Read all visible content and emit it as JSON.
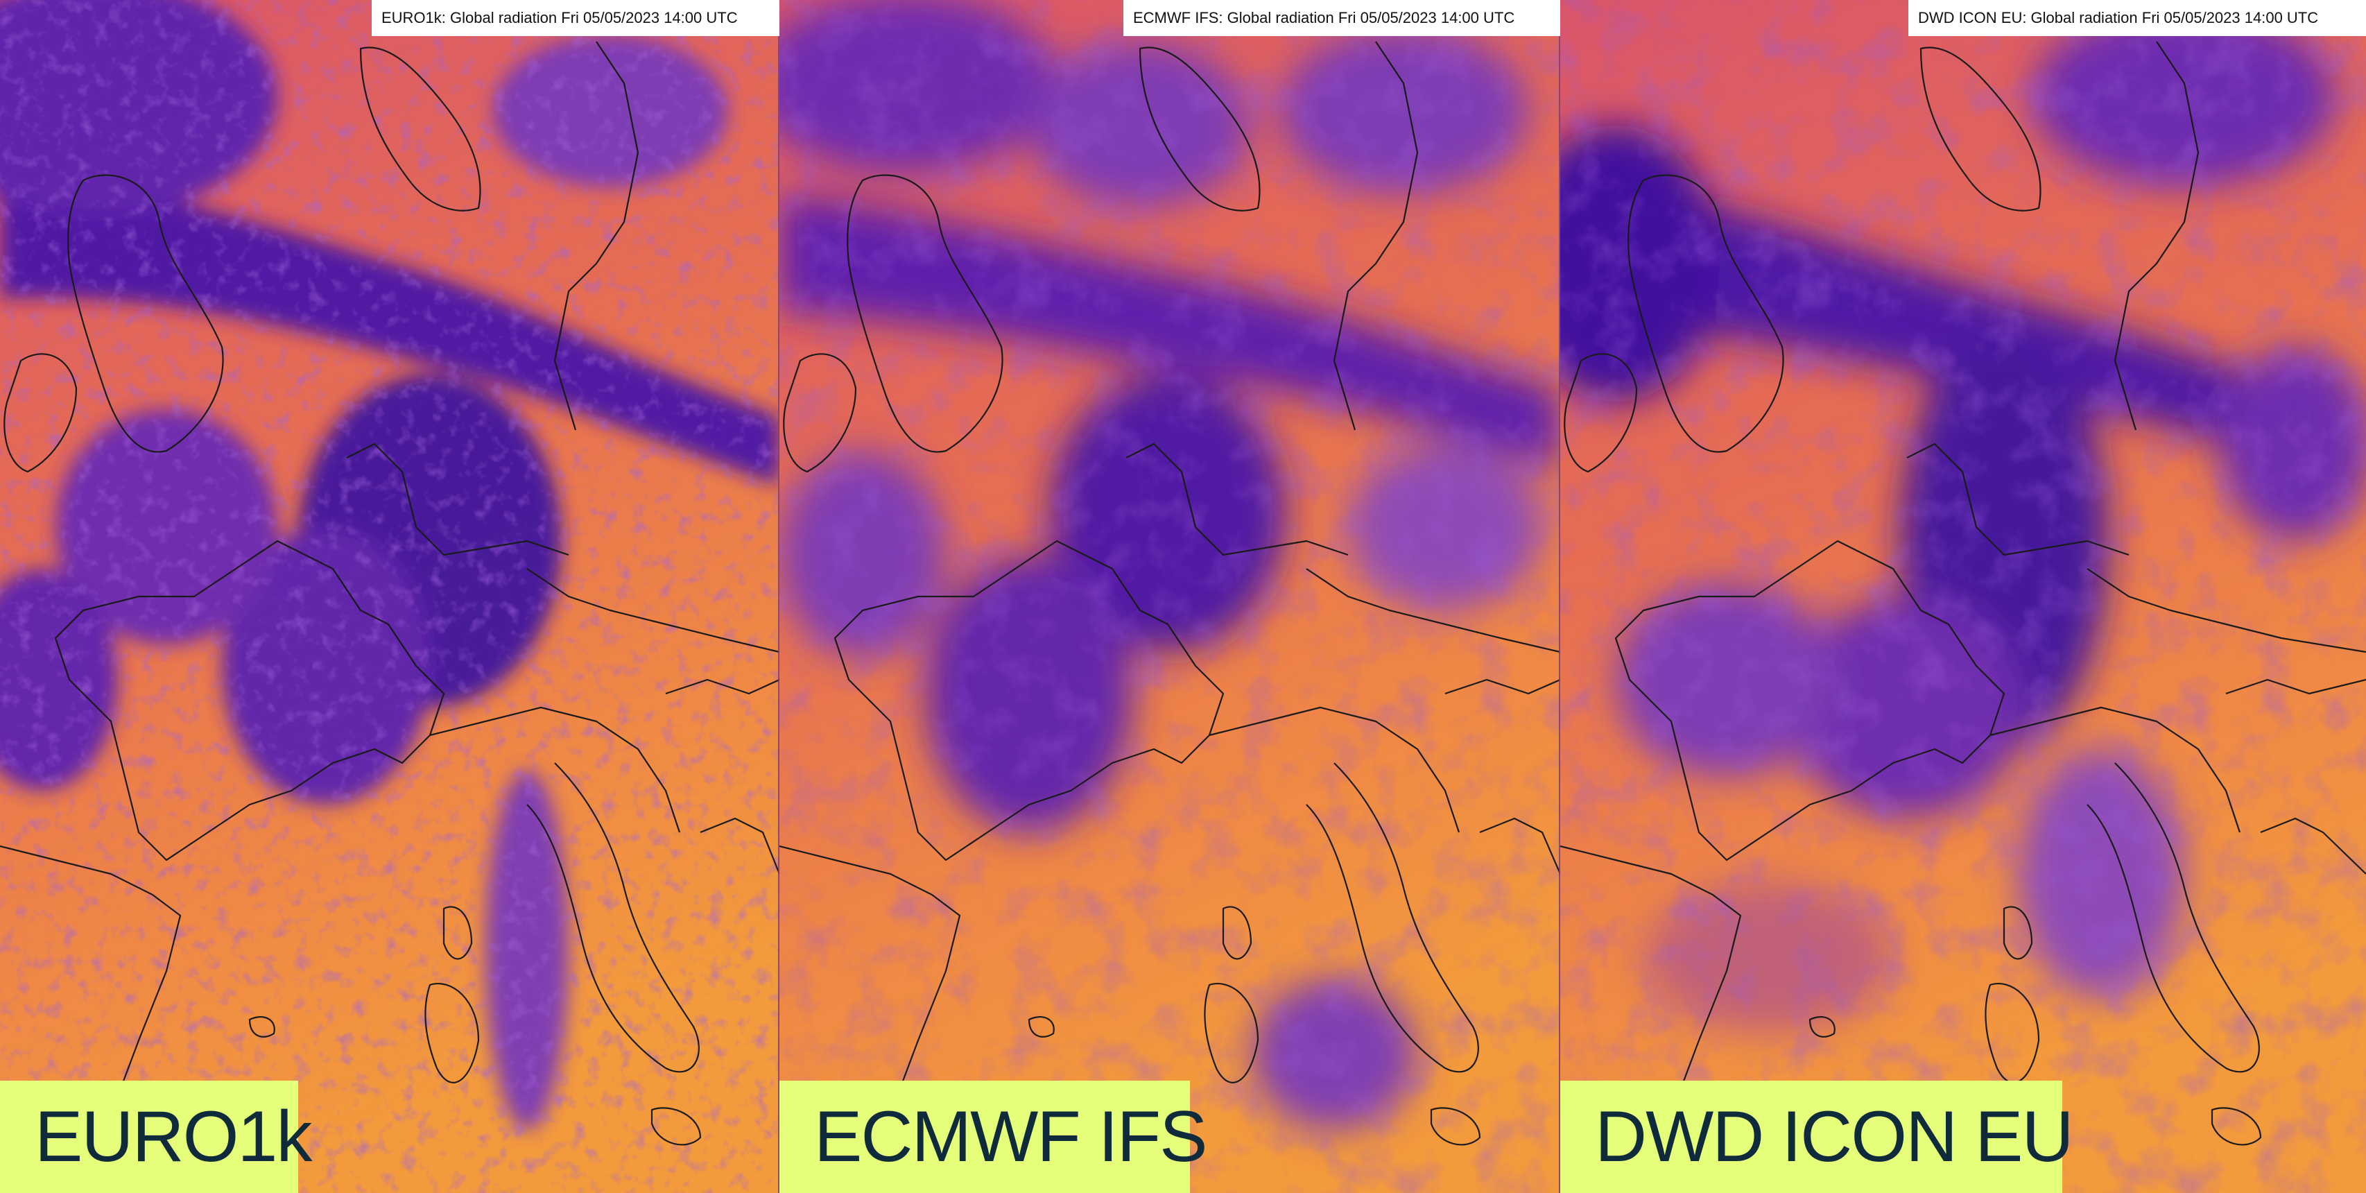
{
  "panels": [
    {
      "title": "EURO1k: Global radiation Fri   05/05/2023   14:00 UTC",
      "label": "EURO1k"
    },
    {
      "title": "ECMWF IFS: Global radiation Fri   05/05/2023   14:00 UTC",
      "label": "ECMWF IFS"
    },
    {
      "title": "DWD ICON EU: Global radiation Fri   05/05/2023   14:00 UTC",
      "label": "DWD ICON EU"
    }
  ],
  "colors": {
    "high_radiation": "#f39a3c",
    "mid_radiation": "#e0634f",
    "low_radiation": "#5a1fb0",
    "very_low_radiation": "#3a10a0",
    "label_background": "#e6ff7a",
    "label_text": "#0f2a3a",
    "borders": "#1a1a1a"
  }
}
